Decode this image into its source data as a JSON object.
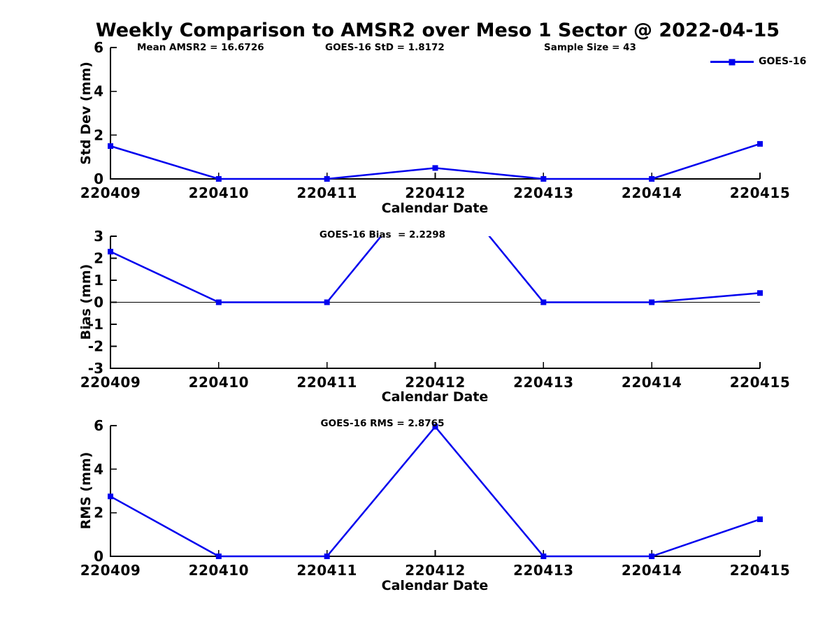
{
  "title": "Weekly Comparison to AMSR2 over Meso 1 Sector @ 2022-04-15",
  "header_annotations": [
    "Mean AMSR2 = 16.6726",
    "GOES-16 StD = 1.8172",
    "Sample Size = 43"
  ],
  "legend": {
    "label": "GOES-16",
    "position": "top-right"
  },
  "colors": {
    "series": "#0000EE",
    "axis": "#000000",
    "text": "#000000",
    "background": "#FFFFFF"
  },
  "chart_data": [
    {
      "type": "line",
      "name": "std-dev",
      "ylabel": "Std Dev (mm)",
      "xlabel": "Calendar Date",
      "annotation": "",
      "categories": [
        "220409",
        "220410",
        "220411",
        "220412",
        "220413",
        "220414",
        "220415"
      ],
      "series": [
        {
          "name": "GOES-16",
          "values": [
            1.5,
            0,
            0,
            0.5,
            0,
            0,
            1.6
          ]
        }
      ],
      "ylim": [
        0,
        6
      ],
      "yticks": [
        0,
        2,
        4,
        6
      ],
      "grid": false,
      "marker": "square"
    },
    {
      "type": "line",
      "name": "bias",
      "ylabel": "Bias (mm)",
      "xlabel": "Calendar Date",
      "annotation": "GOES-16 Bias  = 2.2298",
      "categories": [
        "220409",
        "220410",
        "220411",
        "220412",
        "220413",
        "220414",
        "220415"
      ],
      "series": [
        {
          "name": "GOES-16",
          "values": [
            2.3,
            0,
            0,
            6.0,
            0,
            0,
            0.42
          ]
        }
      ],
      "ylim": [
        -3,
        3
      ],
      "yticks": [
        3,
        2,
        1,
        0,
        -1,
        -2,
        -3
      ],
      "zero_line": true,
      "clipped_peak_at": "220412",
      "grid": false,
      "marker": "square"
    },
    {
      "type": "line",
      "name": "rms",
      "ylabel": "RMS (mm)",
      "xlabel": "Calendar Date",
      "annotation": "GOES-16 RMS = 2.8765",
      "categories": [
        "220409",
        "220410",
        "220411",
        "220412",
        "220413",
        "220414",
        "220415"
      ],
      "series": [
        {
          "name": "GOES-16",
          "values": [
            2.75,
            0,
            0,
            5.95,
            0,
            0,
            1.7
          ]
        }
      ],
      "ylim": [
        0,
        6
      ],
      "yticks": [
        0,
        2,
        4,
        6
      ],
      "grid": false,
      "marker": "square"
    }
  ]
}
